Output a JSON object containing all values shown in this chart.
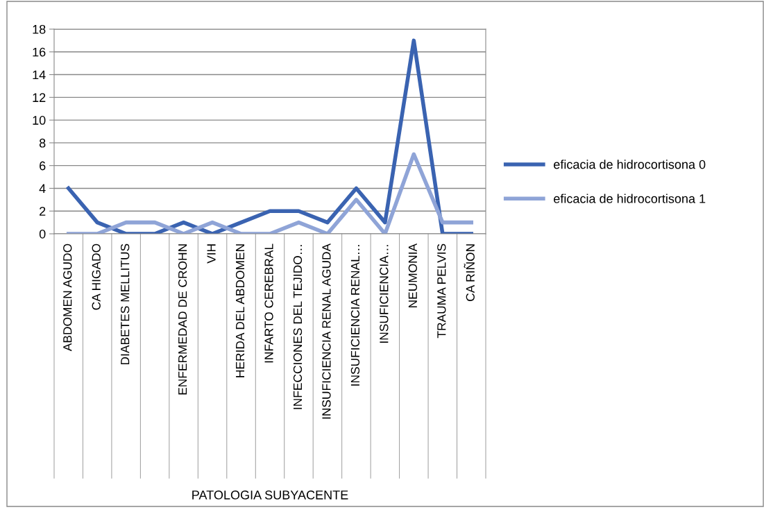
{
  "chart_data": {
    "type": "line",
    "annotations": [
      "PATOLOGIA SUBYACENTE"
    ],
    "categories": [
      "ABDOMEN AGUDO",
      "CA HIGADO",
      "DIABETES MELLITUS",
      null,
      "ENFERMEDAD DE CROHN",
      "VIH",
      "HERIDA DEL ABDOMEN",
      "INFARTO CEREBRAL",
      "INFECCIONES DEL TEJIDO…",
      "INSUFICIENCIA RENAL AGUDA",
      "INSUFICIENCIA RENAL…",
      "INSUFICIENCIA…",
      "NEUMONIA",
      "TRAUMA PELVIS",
      "CA RIÑON"
    ],
    "series": [
      {
        "name": "eficacia de hidrocortisona 0",
        "color": "#3a63b1",
        "values": [
          4,
          1,
          0,
          0,
          1,
          0,
          1,
          2,
          2,
          1,
          4,
          1,
          17,
          0,
          0
        ]
      },
      {
        "name": "eficacia de hidrocortisona 1",
        "color": "#8fa4d7",
        "values": [
          0,
          0,
          1,
          1,
          0,
          1,
          0,
          0,
          1,
          0,
          3,
          0,
          7,
          1,
          1
        ]
      }
    ],
    "ylim": [
      0,
      18
    ],
    "yticks": [
      0,
      2,
      4,
      6,
      8,
      10,
      12,
      14,
      16,
      18
    ],
    "grid": "y",
    "legend": "right",
    "marker": "none",
    "line_style": "solid"
  }
}
